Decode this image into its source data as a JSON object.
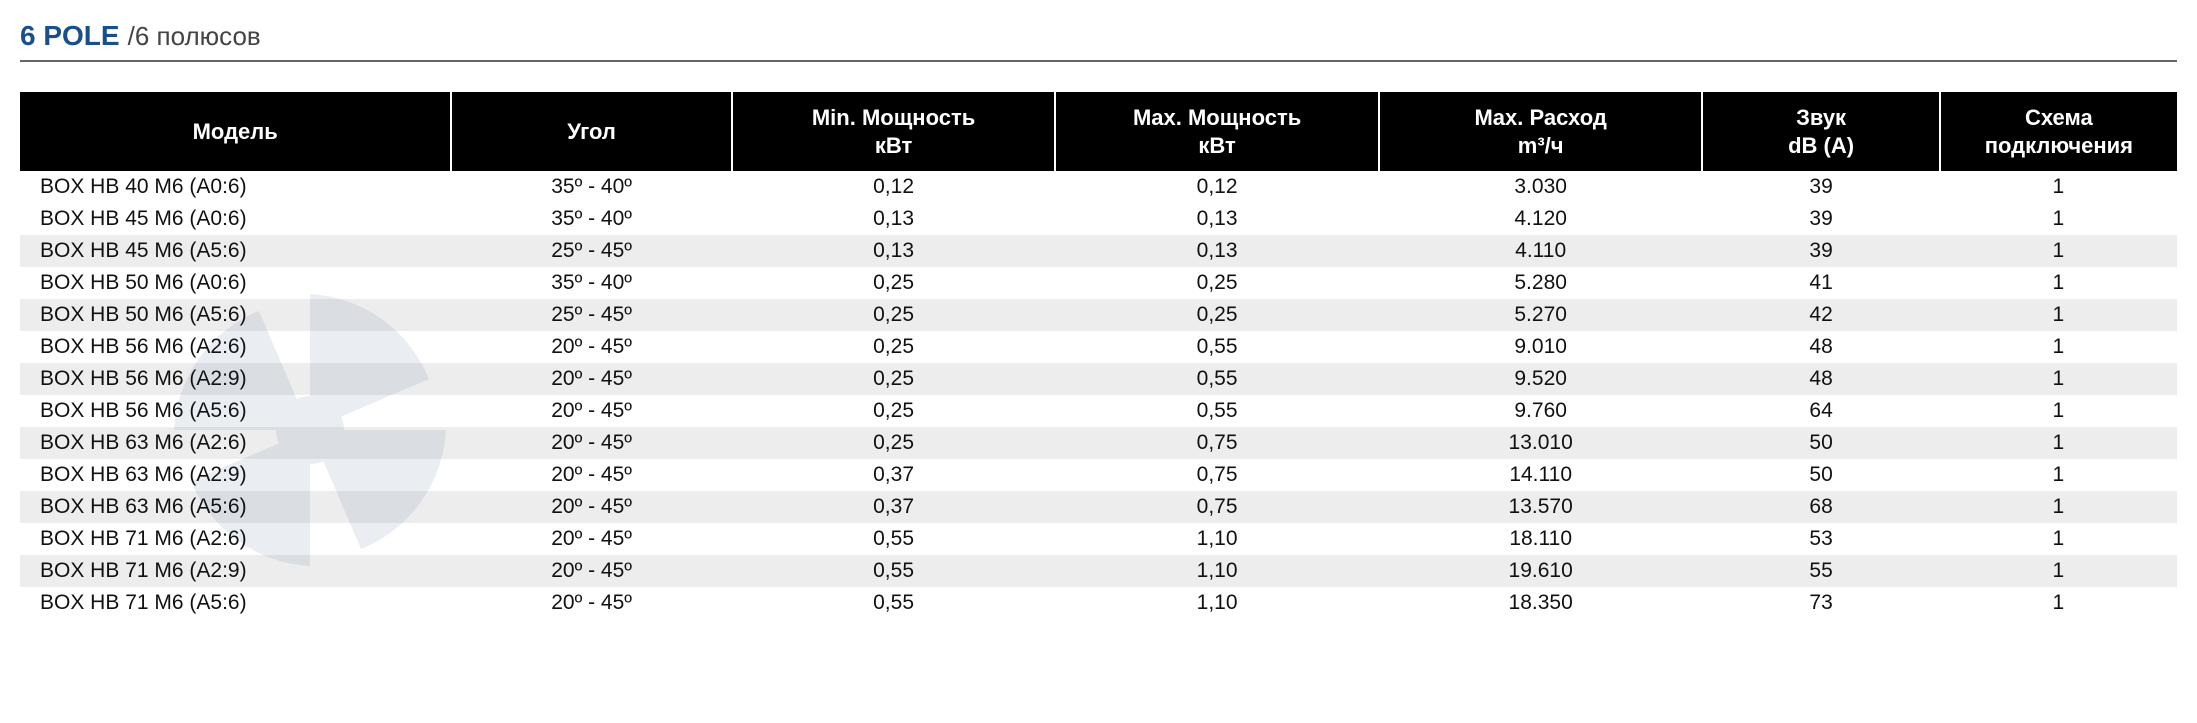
{
  "title": {
    "bold": "6 POLE",
    "separator": " / ",
    "light": "6 полюсов"
  },
  "colors": {
    "header_bg": "#000000",
    "header_fg": "#ffffff",
    "row_shade": "#ededed",
    "title_color": "#1a4f8a",
    "text_color": "#111111",
    "border_color": "#666666"
  },
  "typography": {
    "title_fontsize_pt": 21,
    "header_fontsize_pt": 16,
    "body_fontsize_pt": 16,
    "font_family": "Arial"
  },
  "table": {
    "type": "table",
    "columns": [
      {
        "key": "model",
        "label": "Модель",
        "align": "left",
        "width_pct": 20
      },
      {
        "key": "angle",
        "label": "Угол",
        "align": "center",
        "width_pct": 13
      },
      {
        "key": "minp",
        "label": "Min. Мощность\nкВт",
        "align": "center",
        "width_pct": 15
      },
      {
        "key": "maxp",
        "label": "Max. Мощность\nкВт",
        "align": "center",
        "width_pct": 15
      },
      {
        "key": "flow",
        "label": "Max. Расход\nm³/ч",
        "align": "center",
        "width_pct": 15
      },
      {
        "key": "sound",
        "label": "Звук\ndB (A)",
        "align": "center",
        "width_pct": 11
      },
      {
        "key": "scheme",
        "label": "Схема\nподключения",
        "align": "center",
        "width_pct": 11
      }
    ],
    "rows": [
      {
        "model": "BOX HB 40 M6 (A0:6)",
        "angle": "35º - 40º",
        "minp": "0,12",
        "maxp": "0,12",
        "flow": "3.030",
        "sound": "39",
        "scheme": "1",
        "shade": false
      },
      {
        "model": "BOX HB 45 M6 (A0:6)",
        "angle": "35º - 40º",
        "minp": "0,13",
        "maxp": "0,13",
        "flow": "4.120",
        "sound": "39",
        "scheme": "1",
        "shade": false
      },
      {
        "model": "BOX HB 45 M6 (A5:6)",
        "angle": "25º - 45º",
        "minp": "0,13",
        "maxp": "0,13",
        "flow": "4.110",
        "sound": "39",
        "scheme": "1",
        "shade": true
      },
      {
        "model": "BOX HB 50 M6 (A0:6)",
        "angle": "35º - 40º",
        "minp": "0,25",
        "maxp": "0,25",
        "flow": "5.280",
        "sound": "41",
        "scheme": "1",
        "shade": false
      },
      {
        "model": "BOX HB 50 M6 (A5:6)",
        "angle": "25º - 45º",
        "minp": "0,25",
        "maxp": "0,25",
        "flow": "5.270",
        "sound": "42",
        "scheme": "1",
        "shade": true
      },
      {
        "model": "BOX HB 56 M6 (A2:6)",
        "angle": "20º - 45º",
        "minp": "0,25",
        "maxp": "0,55",
        "flow": "9.010",
        "sound": "48",
        "scheme": "1",
        "shade": false
      },
      {
        "model": "BOX HB 56 M6 (A2:9)",
        "angle": "20º - 45º",
        "minp": "0,25",
        "maxp": "0,55",
        "flow": "9.520",
        "sound": "48",
        "scheme": "1",
        "shade": true
      },
      {
        "model": "BOX HB 56 M6 (A5:6)",
        "angle": "20º - 45º",
        "minp": "0,25",
        "maxp": "0,55",
        "flow": "9.760",
        "sound": "64",
        "scheme": "1",
        "shade": false
      },
      {
        "model": "BOX HB 63 M6 (A2:6)",
        "angle": "20º - 45º",
        "minp": "0,25",
        "maxp": "0,75",
        "flow": "13.010",
        "sound": "50",
        "scheme": "1",
        "shade": true
      },
      {
        "model": "BOX HB 63 M6 (A2:9)",
        "angle": "20º - 45º",
        "minp": "0,37",
        "maxp": "0,75",
        "flow": "14.110",
        "sound": "50",
        "scheme": "1",
        "shade": false
      },
      {
        "model": "BOX HB 63 M6 (A5:6)",
        "angle": "20º - 45º",
        "minp": "0,37",
        "maxp": "0,75",
        "flow": "13.570",
        "sound": "68",
        "scheme": "1",
        "shade": true
      },
      {
        "model": "BOX HB 71 M6 (A2:6)",
        "angle": "20º - 45º",
        "minp": "0,55",
        "maxp": "1,10",
        "flow": "18.110",
        "sound": "53",
        "scheme": "1",
        "shade": false
      },
      {
        "model": "BOX HB 71 M6 (A2:9)",
        "angle": "20º - 45º",
        "minp": "0,55",
        "maxp": "1,10",
        "flow": "19.610",
        "sound": "55",
        "scheme": "1",
        "shade": true
      },
      {
        "model": "BOX HB 71 M6 (A5:6)",
        "angle": "20º - 45º",
        "minp": "0,55",
        "maxp": "1,10",
        "flow": "18.350",
        "sound": "73",
        "scheme": "1",
        "shade": false
      }
    ]
  }
}
